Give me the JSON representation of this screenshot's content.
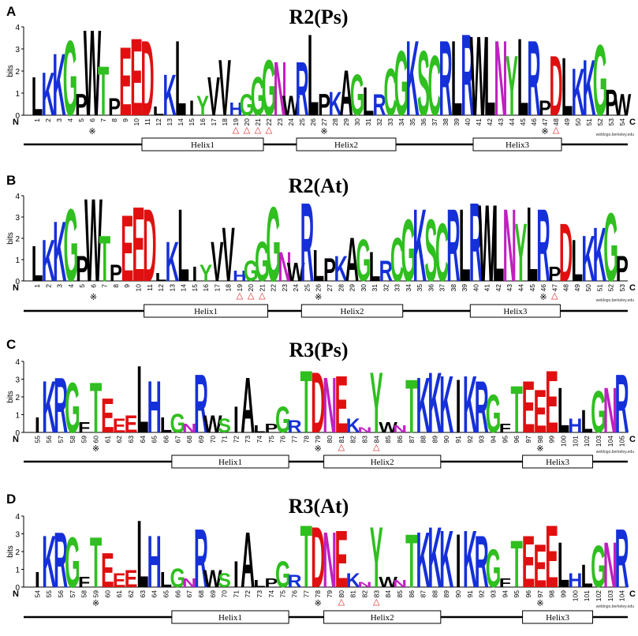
{
  "colors": {
    "G": "#2fbf1f",
    "S": "#2fbf1f",
    "T": "#2fbf1f",
    "Y": "#2fbf1f",
    "C": "#2fbf1f",
    "N": "#c020c0",
    "Q": "#c020c0",
    "K": "#1530d8",
    "R": "#1530d8",
    "H": "#1530d8",
    "D": "#e01010",
    "E": "#e01010",
    "A": "#000000",
    "V": "#000000",
    "L": "#000000",
    "I": "#000000",
    "P": "#000000",
    "F": "#000000",
    "W": "#000000",
    "M": "#000000",
    "triangle": "#e02020"
  },
  "common": {
    "y_axis_label": "bits",
    "y_ticks": [
      "0",
      "1",
      "2",
      "3",
      "4"
    ],
    "n_label": "N",
    "c_label": "C",
    "credit": "weblogo.berkeley.edu",
    "tryptophan_mark": "※",
    "triangle_mark": "△"
  },
  "panels": [
    {
      "letter": "A",
      "title": "R2(Ps)",
      "start": 1,
      "end": 54,
      "tryptophans": [
        6,
        27,
        47
      ],
      "triangles": [
        19,
        20,
        21,
        22,
        48
      ],
      "helices": [
        {
          "label": "Helix1",
          "from": 11,
          "to": 21
        },
        {
          "label": "Helix2",
          "from": 25,
          "to": 33
        },
        {
          "label": "Helix3",
          "from": 41,
          "to": 48
        }
      ],
      "logo": "LKKGPWTPEEDLKLIYVVHGGGNWRLPKAGLRCGKSCRLRWLNYLRPD",
      "hts": [
        1.8,
        2.0,
        2.9,
        3.5,
        1.0,
        4.0,
        2.3,
        0.8,
        3.2,
        3.6,
        3.5,
        0.4,
        1.9,
        3.5,
        0.7,
        0.9,
        1.8,
        2.6,
        0.6,
        1.0,
        1.8,
        2.6,
        2.5,
        0.9,
        2.5,
        3.8,
        1.0,
        1.1,
        2.1,
        1.9,
        1.3,
        1.0,
        2.2,
        3.0,
        3.5,
        3.0,
        2.8,
        3.5,
        3.5,
        3.8,
        3.7,
        3.7,
        3.5,
        2.8,
        3.6,
        3.5,
        0.7,
        2.8,
        2.7,
        2.2,
        2.6,
        3.3,
        1.2,
        1.0
      ]
    },
    {
      "letter": "B",
      "title": "R2(At)",
      "start": 1,
      "end": 53,
      "tryptophans": [
        6,
        26,
        46
      ],
      "triangles": [
        19,
        20,
        21,
        47
      ],
      "helices": [
        {
          "label": "Helix1",
          "from": 11,
          "to": 21
        },
        {
          "label": "Helix2",
          "from": 25,
          "to": 33
        },
        {
          "label": "Helix3",
          "from": 40,
          "to": 47
        }
      ],
      "logo": "LKKGPWTPEEDLKLIYVVHGGGNWRLPKAGLRCGKSCRLRWLNYLRPD",
      "hts": [
        1.7,
        2.0,
        2.9,
        3.5,
        1.2,
        4.0,
        2.2,
        0.8,
        3.2,
        3.6,
        3.5,
        0.4,
        1.9,
        3.5,
        0.7,
        0.8,
        1.9,
        2.6,
        0.5,
        1.0,
        1.9,
        3.6,
        1.4,
        0.9,
        3.8,
        1.5,
        1.1,
        1.2,
        2.1,
        2.0,
        1.4,
        1.0,
        2.1,
        3.0,
        3.5,
        3.0,
        2.8,
        3.5,
        3.5,
        3.8,
        3.7,
        3.7,
        3.5,
        2.8,
        3.6,
        3.5,
        0.7,
        2.8,
        2.0,
        2.2,
        2.6,
        3.3,
        1.2
      ]
    },
    {
      "letter": "C",
      "title": "R3(Ps)",
      "start": 55,
      "end": 105,
      "tryptophans": [
        60,
        79,
        98
      ],
      "triangles": [
        81,
        84
      ],
      "helices": [
        {
          "label": "Helix1",
          "from": 67,
          "to": 76
        },
        {
          "label": "Helix2",
          "from": 80,
          "to": 89
        },
        {
          "label": "Helix3",
          "from": 97,
          "to": 102
        }
      ],
      "logo": "IKRGFTEEELHLGNRWSIALPGRTDNEKNYWNTKKK",
      "hts": [
        0.9,
        3.0,
        3.2,
        2.9,
        0.6,
        2.9,
        2.0,
        0.8,
        1.0,
        3.9,
        3.0,
        0.9,
        1.1,
        0.5,
        3.4,
        1.0,
        0.8,
        1.5,
        3.2,
        0.4,
        0.5,
        1.5,
        0.7,
        3.6,
        3.5,
        3.2,
        3.3,
        0.8,
        0.3,
        3.5,
        0.6,
        0.4,
        3.1,
        3.2,
        3.5,
        3.3,
        3.1,
        3.3,
        3.0,
        2.2,
        0.5,
        2.7,
        3.0,
        2.5,
        3.6,
        2.6,
        0.8,
        1.3,
        2.4,
        2.6,
        3.4
      ]
    },
    {
      "letter": "D",
      "title": "R3(At)",
      "start": 54,
      "end": 104,
      "tryptophans": [
        59,
        78,
        97
      ],
      "triangles": [
        80,
        83
      ],
      "helices": [
        {
          "label": "Helix1",
          "from": 66,
          "to": 75
        },
        {
          "label": "Helix2",
          "from": 79,
          "to": 88
        },
        {
          "label": "Helix3",
          "from": 96,
          "to": 101
        }
      ],
      "logo": "IKRGFTEEELHLGNRWSIALPGRTDNEKNYWNTKKK",
      "hts": [
        0.9,
        3.0,
        3.2,
        2.9,
        0.6,
        2.9,
        2.0,
        0.8,
        1.0,
        3.9,
        3.0,
        0.9,
        1.1,
        0.5,
        3.4,
        1.0,
        0.8,
        1.5,
        3.2,
        0.4,
        0.5,
        1.5,
        0.7,
        3.6,
        3.5,
        3.2,
        3.3,
        0.8,
        0.3,
        3.5,
        0.6,
        0.4,
        3.1,
        3.2,
        3.5,
        3.3,
        3.1,
        3.3,
        3.0,
        2.2,
        0.5,
        2.7,
        3.0,
        2.5,
        3.6,
        2.6,
        0.8,
        1.3,
        2.4,
        2.6,
        3.4
      ]
    }
  ]
}
